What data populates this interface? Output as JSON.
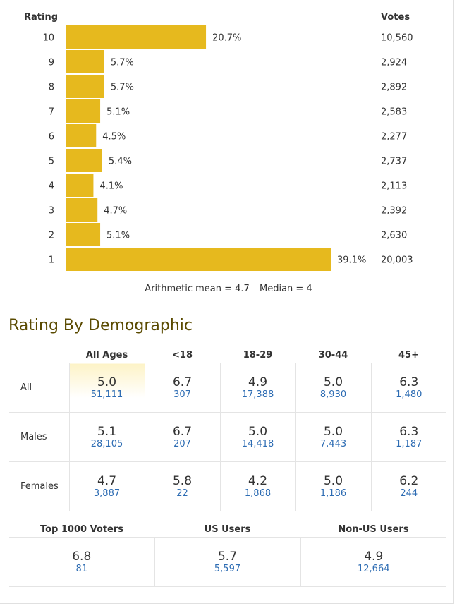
{
  "chart_data": {
    "type": "bar",
    "orientation": "horizontal",
    "rating_header": "Rating",
    "votes_header": "Votes",
    "categories": [
      "10",
      "9",
      "8",
      "7",
      "6",
      "5",
      "4",
      "3",
      "2",
      "1"
    ],
    "values": [
      20.7,
      5.7,
      5.7,
      5.1,
      4.5,
      5.4,
      4.1,
      4.7,
      5.1,
      39.1
    ],
    "value_labels": [
      "20.7%",
      "5.7%",
      "5.7%",
      "5.1%",
      "4.5%",
      "5.4%",
      "4.1%",
      "4.7%",
      "5.1%",
      "39.1%"
    ],
    "votes": [
      "10,560",
      "2,924",
      "2,892",
      "2,583",
      "2,277",
      "2,737",
      "2,113",
      "2,392",
      "2,630",
      "20,003"
    ],
    "xlim": [
      0,
      39.1
    ],
    "bar_color": "#e6b91e",
    "grid": false
  },
  "stats": {
    "mean": "Arithmetic mean = 4.7",
    "median": "Median = 4"
  },
  "demographic": {
    "title": "Rating By Demographic",
    "columns": [
      "All Ages",
      "<18",
      "18-29",
      "30-44",
      "45+"
    ],
    "rows": [
      {
        "label": "All",
        "cells": [
          {
            "rating": "5.0",
            "votes": "51,111"
          },
          {
            "rating": "6.7",
            "votes": "307"
          },
          {
            "rating": "4.9",
            "votes": "17,388"
          },
          {
            "rating": "5.0",
            "votes": "8,930"
          },
          {
            "rating": "6.3",
            "votes": "1,480"
          }
        ]
      },
      {
        "label": "Males",
        "cells": [
          {
            "rating": "5.1",
            "votes": "28,105"
          },
          {
            "rating": "6.7",
            "votes": "207"
          },
          {
            "rating": "5.0",
            "votes": "14,418"
          },
          {
            "rating": "5.0",
            "votes": "7,443"
          },
          {
            "rating": "6.3",
            "votes": "1,187"
          }
        ]
      },
      {
        "label": "Females",
        "cells": [
          {
            "rating": "4.7",
            "votes": "3,887"
          },
          {
            "rating": "5.8",
            "votes": "22"
          },
          {
            "rating": "4.2",
            "votes": "1,868"
          },
          {
            "rating": "5.0",
            "votes": "1,186"
          },
          {
            "rating": "6.2",
            "votes": "244"
          }
        ]
      }
    ]
  },
  "extra": [
    {
      "label": "Top 1000 Voters",
      "rating": "6.8",
      "votes": "81"
    },
    {
      "label": "US Users",
      "rating": "5.7",
      "votes": "5,597"
    },
    {
      "label": "Non-US Users",
      "rating": "4.9",
      "votes": "12,664"
    }
  ],
  "colors": {
    "link": "#2d6cb3",
    "title": "#5a4a00",
    "highlight": "#fdf3c7"
  }
}
